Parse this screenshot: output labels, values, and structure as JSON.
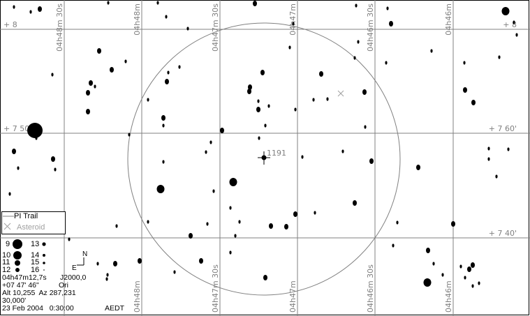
{
  "grid": {
    "ra_labels_top": [
      "04h48m 30s",
      "04h48m",
      "04h47m 30s",
      "04h47m",
      "04h46m 30s",
      "04h46m"
    ],
    "ra_labels_bottom": [
      "04h48m",
      "04h47m 30s",
      "04h47m",
      "04h46m 30s",
      "04h46m"
    ],
    "dec_labels_left": [
      "+  8",
      "+  7 50'"
    ],
    "dec_labels_right": [
      "+  8",
      "+  7 60'",
      "+  7 40'"
    ]
  },
  "target_label": "1191",
  "legend": {
    "trail_label": "PI Trail",
    "asteroid_label": "Asteroid",
    "magnitudes": [
      "9",
      "10",
      "11",
      "12",
      "13",
      "14",
      "15",
      "16"
    ]
  },
  "compass": {
    "north": "N",
    "east": "E"
  },
  "info": {
    "ra": "04h47m12,7s",
    "epoch": "J2000,0",
    "dec": "+07 47' 46\"",
    "constellation": "Ori",
    "altaz": "Alt 10,255  Az 287,231",
    "field": "30,000'",
    "date": "23 Feb 2004   0:30:00",
    "timezone": "AEDT"
  },
  "colors": {
    "grid": "#808080",
    "stars": "#000000",
    "asteroid": "#a0a0a0"
  }
}
